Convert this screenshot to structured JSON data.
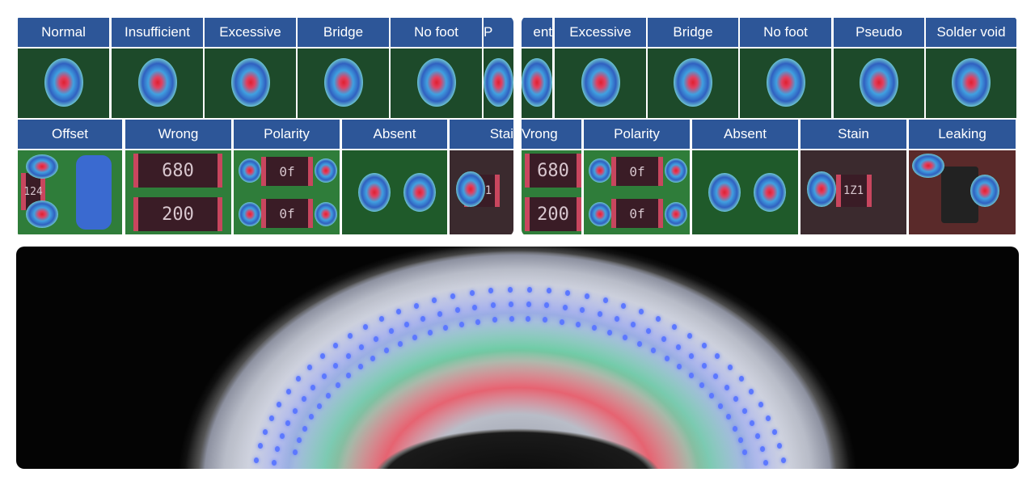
{
  "carousel_left": {
    "row1_labels": [
      "Normal",
      "Insufficient",
      "Excessive",
      "Bridge",
      "No foot",
      "P"
    ],
    "row2_labels": [
      "Offset",
      "Wrong",
      "Polarity",
      "Absent",
      "Stai"
    ]
  },
  "carousel_right": {
    "row1_labels": [
      "ent",
      "Excessive",
      "Bridge",
      "No foot",
      "Pseudo",
      "Solder void"
    ],
    "row2_labels": [
      "Vrong",
      "Polarity",
      "Absent",
      "Stain",
      "Leaking"
    ]
  },
  "component_markings": {
    "offset": "124",
    "wrong_top": "680",
    "wrong_bottom": "200",
    "polarity": "0f",
    "stain": "1Z1"
  },
  "colors": {
    "label_bg": "#2d5698",
    "thumb_bg": "#1d4a2a",
    "pcb_green": "#2f7d3a"
  }
}
